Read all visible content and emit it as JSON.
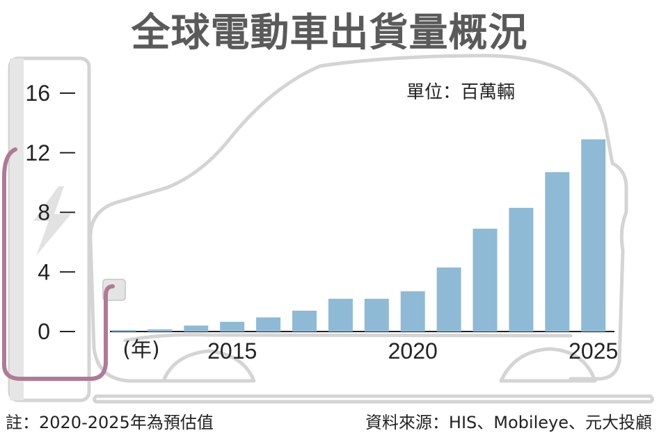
{
  "title": "全球電動車出貨量概況",
  "unit": "單位：百萬輛",
  "note": "註：2020-2025年為預估值",
  "source": "資料來源：HIS、Mobileye、元大投顧",
  "colors": {
    "bar": "#8fbad6",
    "outline": "#d4d4d4",
    "plug": "#b07a94",
    "text": "#222222",
    "title": "#5a5a5a"
  },
  "icons": [
    "lightning-bolt-icon",
    "car-outline-icon",
    "charging-plug-icon"
  ],
  "chart_data": {
    "type": "bar",
    "ylim": [
      0,
      16
    ],
    "yticks": [
      0,
      4,
      8,
      12,
      16
    ],
    "x_unit_label": "(年)",
    "x_tick_labels": [
      "2015",
      "2020",
      "2025"
    ],
    "categories": [
      "2012",
      "2013",
      "2014",
      "2015",
      "2016",
      "2017",
      "2018",
      "2019",
      "2020",
      "2021",
      "2022",
      "2023",
      "2024",
      "2025"
    ],
    "values": [
      0.1,
      0.15,
      0.4,
      0.65,
      0.95,
      1.4,
      2.2,
      2.2,
      2.7,
      4.3,
      6.9,
      8.3,
      10.7,
      12.9
    ],
    "estimated_from": "2020",
    "grid": false,
    "legend": "none"
  }
}
